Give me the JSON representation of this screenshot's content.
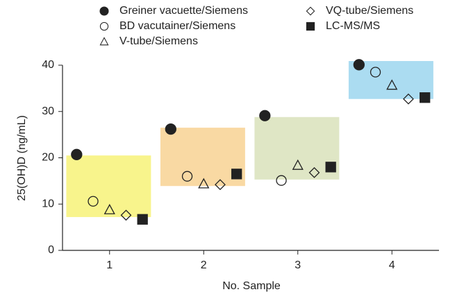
{
  "chart_data": {
    "type": "scatter",
    "y_label": "25(OH)D (ng/mL)",
    "x_label": "No. Sample",
    "xlim": [
      0.5,
      4.5
    ],
    "xticks": [
      1,
      2,
      3,
      4
    ],
    "ylim": [
      0,
      40
    ],
    "yticks": [
      0,
      10,
      20,
      30,
      40
    ],
    "ranges": [
      [
        7.2,
        20.5
      ],
      [
        13.9,
        26.5
      ],
      [
        15.3,
        28.8
      ],
      [
        32.7,
        40.9
      ]
    ],
    "range_colors": [
      "#f8f48c",
      "#f9d9a3",
      "#dfe6c5",
      "#abdcf1"
    ],
    "series": [
      {
        "name": "Greiner vacuette/Siemens",
        "marker": "filled-circle",
        "color": "#222222",
        "x": [
          0.65,
          1.65,
          2.65,
          3.65
        ],
        "values": [
          20.7,
          26.2,
          29.1,
          40.1
        ]
      },
      {
        "name": "BD vacutainer/Siemens",
        "marker": "open-circle",
        "color": "#222222",
        "x": [
          0.825,
          1.825,
          2.825,
          3.825
        ],
        "values": [
          10.6,
          16.0,
          15.1,
          38.5
        ]
      },
      {
        "name": "V-tube/Siemens",
        "marker": "triangle",
        "color": "#222222",
        "x": [
          1,
          2,
          3,
          4
        ],
        "values": [
          8.8,
          14.4,
          18.4,
          35.7
        ]
      },
      {
        "name": "VQ-tube/Siemens",
        "marker": "diamond",
        "color": "#222222",
        "x": [
          1.175,
          2.175,
          3.175,
          4.175
        ],
        "values": [
          7.6,
          14.2,
          16.8,
          32.7
        ]
      },
      {
        "name": "LC-MS/MS",
        "marker": "filled-square",
        "color": "#222222",
        "x": [
          1.35,
          2.35,
          3.35,
          4.35
        ],
        "values": [
          6.7,
          16.5,
          18.0,
          33.0
        ]
      }
    ]
  }
}
